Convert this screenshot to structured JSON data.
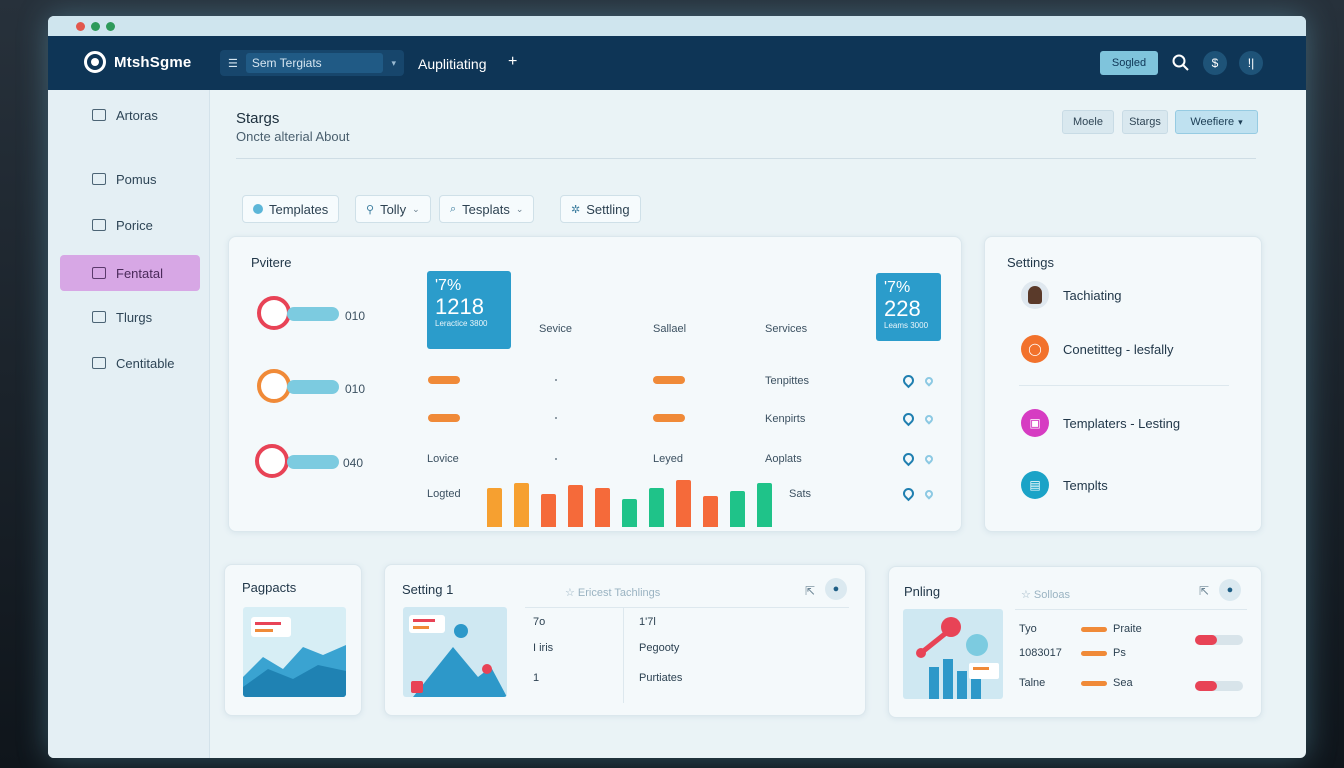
{
  "app": {
    "name": "MtshSgme"
  },
  "topbar": {
    "select_value": "Sem Tergiats",
    "link": "Auplitiating",
    "plus": "+",
    "signed_label": "Sogled",
    "icon_mid": "$",
    "icon_right": "!|"
  },
  "sidebar": {
    "items": [
      {
        "label": "Artoras",
        "icon": "list-icon"
      },
      {
        "label": "Pomus",
        "icon": "grid-icon"
      },
      {
        "label": "Porice",
        "icon": "edit-icon"
      },
      {
        "label": "Fentatal",
        "icon": "document-icon",
        "active": true
      },
      {
        "label": "Tlurgs",
        "icon": "tag-icon"
      },
      {
        "label": "Centitable",
        "icon": "mail-icon"
      }
    ]
  },
  "header": {
    "title": "Stargs",
    "subtitle": "Oncte alterial About",
    "buttons": [
      "Moele",
      "Stargs",
      "Weefiere"
    ]
  },
  "filters": [
    {
      "label": "Templates",
      "caret": ""
    },
    {
      "label": "Tolly",
      "caret": "⌄"
    },
    {
      "label": "Tesplats",
      "caret": "⌄"
    },
    {
      "label": "Settling",
      "caret": ""
    }
  ],
  "overview": {
    "title": "Pvitere",
    "rings": [
      {
        "value": "010",
        "color": "#e84356"
      },
      {
        "value": "010",
        "color": "#f08a38"
      },
      {
        "value": "040",
        "color": "#e84356"
      }
    ],
    "kpi_left": {
      "percent": "'7%",
      "value": "1218",
      "caption": "Leractice 3800"
    },
    "kpi_right": {
      "percent": "'7%",
      "value": "228",
      "caption": "Leams 3000"
    },
    "columns": [
      "Sevice",
      "Sallael",
      "Services"
    ],
    "rows": [
      {
        "left": "",
        "right": "Tenpittes"
      },
      {
        "left": "",
        "right": "Kenpirts"
      },
      {
        "left": "Lovice",
        "mid": "Leyed",
        "right": "Aoplats"
      },
      {
        "left": "Logted",
        "right": "Sats"
      }
    ],
    "bars": [
      {
        "value": 7,
        "color": "#f6a030"
      },
      {
        "value": 8,
        "color": "#f6a030"
      },
      {
        "value": 6,
        "color": "#f56a3a"
      },
      {
        "value": 7.5,
        "color": "#f56a3a"
      },
      {
        "value": 7,
        "color": "#f56a3a"
      },
      {
        "value": 5,
        "color": "#1fc389"
      },
      {
        "value": 7,
        "color": "#1fc389"
      },
      {
        "value": 8.5,
        "color": "#f56a3a"
      },
      {
        "value": 5.5,
        "color": "#f56a3a"
      },
      {
        "value": 6.5,
        "color": "#1fc389"
      },
      {
        "value": 8,
        "color": "#1fc389"
      }
    ]
  },
  "settings": {
    "title": "Settings",
    "items": [
      {
        "label": "Tachiating",
        "color": "#dfe8ef",
        "icon": "avatar"
      },
      {
        "label": "Conetitteg - lesfally",
        "color": "#f2722c",
        "icon": "user-icon"
      },
      {
        "label": "Templaters - Lesting",
        "color": "#d63cc2",
        "icon": "image-icon"
      },
      {
        "label": "Templts",
        "color": "#1ba3c7",
        "icon": "document-icon"
      }
    ]
  },
  "cards": {
    "pagpacts": {
      "title": "Pagpacts"
    },
    "setting": {
      "title": "Setting 1",
      "meta": "☆ Ericest Tachlings",
      "cells": [
        [
          "7o",
          "1'7l"
        ],
        [
          "I iris",
          "Pegooty"
        ],
        [
          "1",
          "Purtiates"
        ]
      ]
    },
    "pnling": {
      "title": "Pnling",
      "meta": "☆ Solloas",
      "rows": [
        {
          "label": "Tyo",
          "tag": "Praite",
          "fill": 0.45
        },
        {
          "label": "1083017",
          "tag": "Ps",
          "fill": null
        },
        {
          "label": "Talne",
          "tag": "Sea",
          "fill": 0.45
        }
      ]
    }
  }
}
